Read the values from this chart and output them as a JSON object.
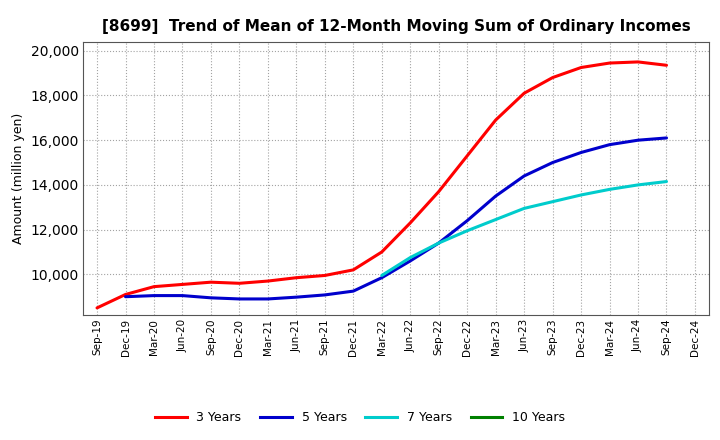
{
  "title": "[8699]  Trend of Mean of 12-Month Moving Sum of Ordinary Incomes",
  "ylabel": "Amount (million yen)",
  "background_color": "#ffffff",
  "plot_bg_color": "#ffffff",
  "grid_color": "#999999",
  "x_labels": [
    "Sep-19",
    "Dec-19",
    "Mar-20",
    "Jun-20",
    "Sep-20",
    "Dec-20",
    "Mar-21",
    "Jun-21",
    "Sep-21",
    "Dec-21",
    "Mar-22",
    "Jun-22",
    "Sep-22",
    "Dec-22",
    "Mar-23",
    "Jun-23",
    "Sep-23",
    "Dec-23",
    "Mar-24",
    "Jun-24",
    "Sep-24",
    "Dec-24"
  ],
  "series": {
    "3 Years": {
      "color": "#ff0000",
      "data_x": [
        0,
        1,
        2,
        3,
        4,
        5,
        6,
        7,
        8,
        9,
        10,
        11,
        12,
        13,
        14,
        15,
        16,
        17,
        18,
        19,
        20
      ],
      "data_y": [
        8500,
        9100,
        9450,
        9550,
        9650,
        9600,
        9700,
        9850,
        9950,
        10200,
        11000,
        12300,
        13700,
        15300,
        16900,
        18100,
        18800,
        19250,
        19450,
        19500,
        19350
      ]
    },
    "5 Years": {
      "color": "#0000cc",
      "data_x": [
        1,
        2,
        3,
        4,
        5,
        6,
        7,
        8,
        9,
        10,
        11,
        12,
        13,
        14,
        15,
        16,
        17,
        18,
        19,
        20
      ],
      "data_y": [
        9000,
        9050,
        9050,
        8950,
        8900,
        8900,
        8980,
        9080,
        9250,
        9850,
        10600,
        11400,
        12400,
        13500,
        14400,
        15000,
        15450,
        15800,
        16000,
        16100
      ]
    },
    "7 Years": {
      "color": "#00cccc",
      "data_x": [
        10,
        11,
        12,
        13,
        14,
        15,
        16,
        17,
        18,
        19,
        20
      ],
      "data_y": [
        9950,
        10750,
        11400,
        11950,
        12450,
        12950,
        13250,
        13550,
        13800,
        14000,
        14150
      ]
    },
    "10 Years": {
      "color": "#008000",
      "data_x": [],
      "data_y": []
    }
  },
  "ylim": [
    8200,
    20400
  ],
  "yticks": [
    10000,
    12000,
    14000,
    16000,
    18000,
    20000
  ],
  "legend_colors": [
    "#ff0000",
    "#0000cc",
    "#00cccc",
    "#008000"
  ],
  "legend_labels": [
    "3 Years",
    "5 Years",
    "7 Years",
    "10 Years"
  ]
}
